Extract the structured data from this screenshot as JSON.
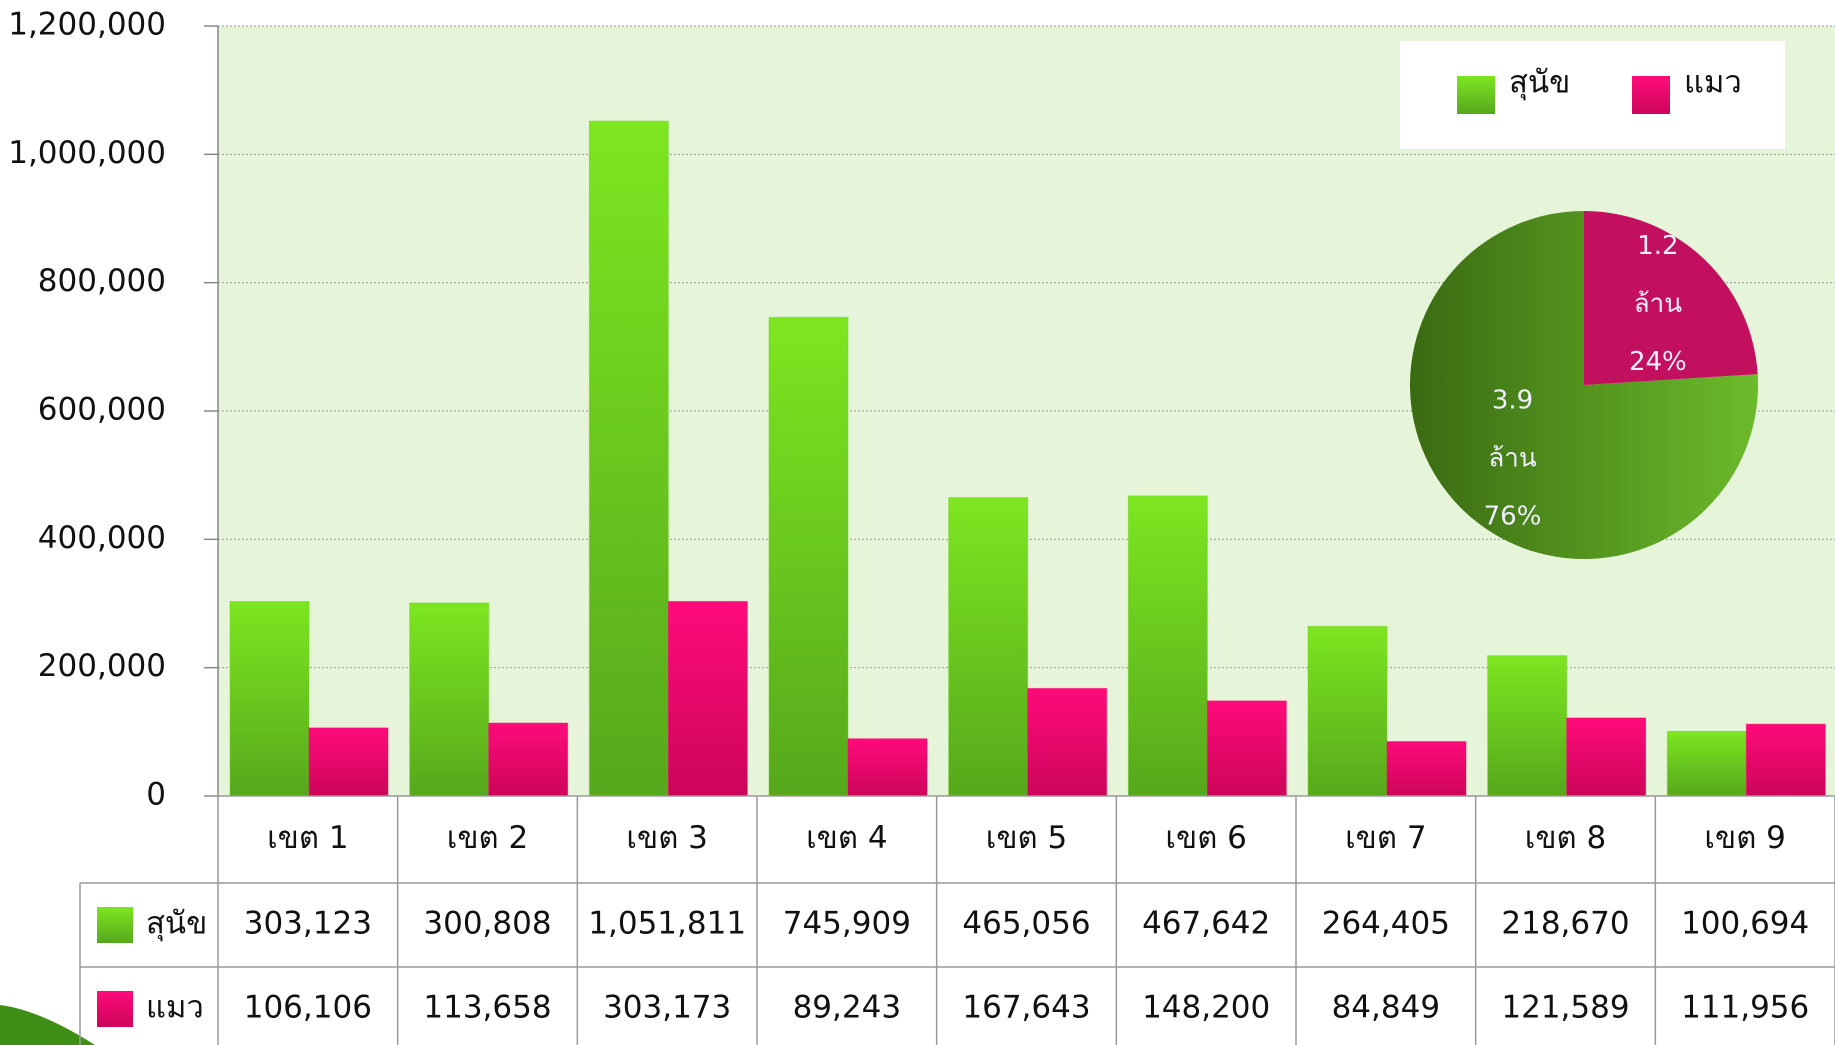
{
  "chart_data": [
    {
      "type": "bar",
      "categories": [
        "เขต 1",
        "เขต 2",
        "เขต 3",
        "เขต 4",
        "เขต 5",
        "เขต 6",
        "เขต 7",
        "เขต 8",
        "เขต 9"
      ],
      "series": [
        {
          "name": "สุนัข",
          "color": "#6cd11f",
          "values": [
            303123,
            300808,
            1051811,
            745909,
            465056,
            467642,
            264405,
            218670,
            100694
          ],
          "value_labels": [
            "303,123",
            "300,808",
            "1,051,811",
            "745,909",
            "465,056",
            "467,642",
            "264,405",
            "218,670",
            "100,694"
          ]
        },
        {
          "name": "แมว",
          "color": "#f0056e",
          "values": [
            106106,
            113658,
            303173,
            89243,
            167643,
            148200,
            84849,
            121589,
            111956
          ],
          "value_labels": [
            "106,106",
            "113,658",
            "303,173",
            "89,243",
            "167,643",
            "148,200",
            "84,849",
            "121,589",
            "111,956"
          ]
        }
      ],
      "ylim": [
        0,
        1200000
      ],
      "yticks": [
        0,
        {
          "value": 200000,
          "label": "200,000"
        },
        {
          "value": 400000,
          "label": "400,000"
        },
        {
          "value": 600000,
          "label": "600,000"
        },
        {
          "value": 800000,
          "label": "800,000"
        },
        {
          "value": 1000000,
          "label": "1,000,000"
        },
        {
          "value": 1200000,
          "label": "1,200,000"
        }
      ],
      "grid": true,
      "legend": "upper right"
    },
    {
      "type": "pie",
      "values": [
        76,
        24
      ],
      "colors": [
        "#5aa523",
        "#c2105e"
      ],
      "value_labels": [
        "76%",
        "24%"
      ],
      "amount_labels": [
        [
          "3.9",
          "ล้าน"
        ],
        [
          "1.2",
          "ล้าน"
        ]
      ]
    }
  ]
}
